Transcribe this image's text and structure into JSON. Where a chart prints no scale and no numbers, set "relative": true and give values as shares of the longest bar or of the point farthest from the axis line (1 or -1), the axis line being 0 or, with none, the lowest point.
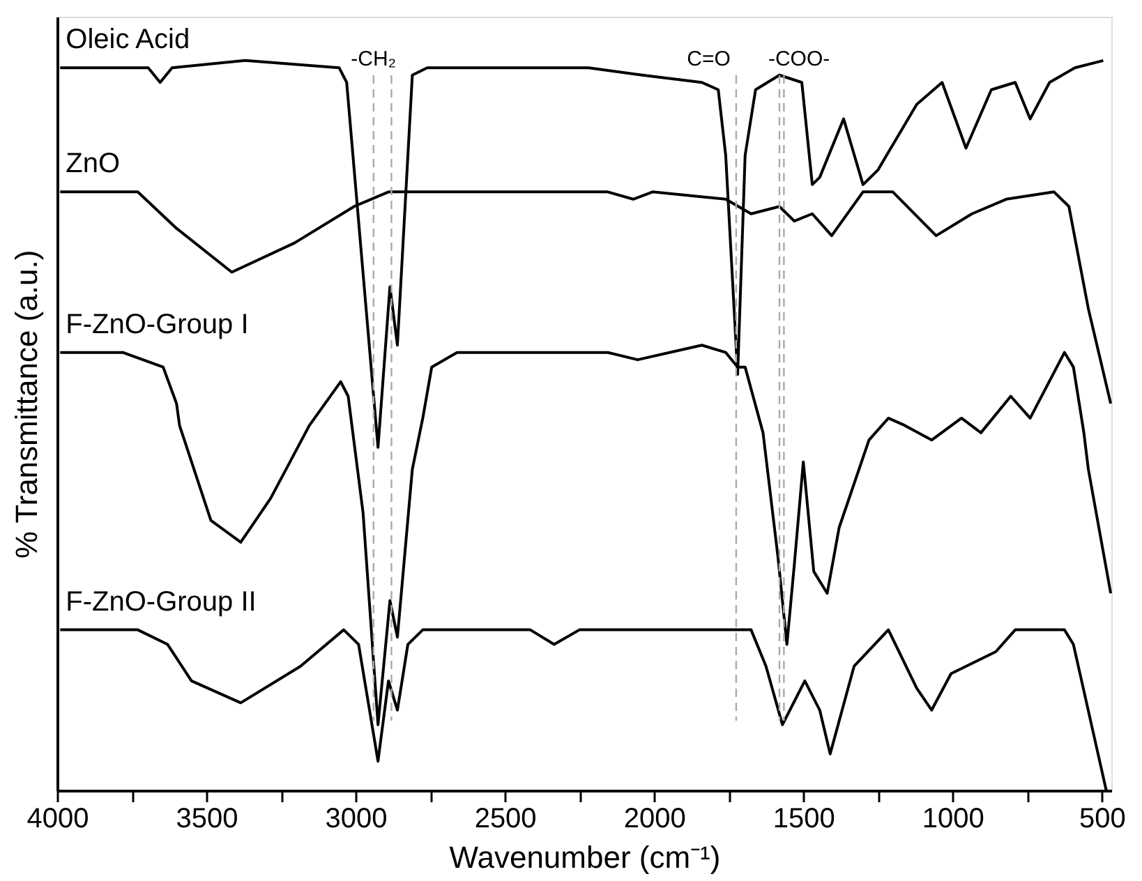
{
  "chart_data": {
    "type": "line",
    "relative": true,
    "xlabel": "Wavenumber (cm⁻¹)",
    "ylabel": "% Transmittance (a.u.)",
    "xlim": [
      4000,
      468
    ],
    "xticks": [
      4000,
      {
        "value": 3750,
        "label": null
      },
      3500,
      {
        "value": 3250,
        "label": null
      },
      3000,
      {
        "value": 2750,
        "label": null
      },
      2500,
      {
        "value": 2250,
        "label": null
      },
      2000,
      {
        "value": 1750,
        "label": null
      },
      1500,
      {
        "value": 1250,
        "label": null
      },
      1000,
      {
        "value": 750,
        "label": null
      },
      500
    ],
    "grid": false,
    "legend": false,
    "marker": "none",
    "line_style": "solid",
    "ref_lines": [
      {
        "axis": "x",
        "value": 2940,
        "label": "-CH₂",
        "color": "#aaaaaa",
        "line_style": "dashed"
      },
      {
        "axis": "x",
        "value": 2880,
        "label": null,
        "color": "#aaaaaa",
        "line_style": "dashed"
      },
      {
        "axis": "x",
        "value": 1725,
        "label": "C=O",
        "color": "#aaaaaa",
        "line_style": "dashed"
      },
      {
        "axis": "x",
        "value": 1580,
        "label": "-COO-",
        "color": "#aaaaaa",
        "line_style": "dashed"
      },
      {
        "axis": "x",
        "value": 1565,
        "label": null,
        "color": "#aaaaaa",
        "line_style": "dashed"
      }
    ],
    "series": [
      {
        "name": "Oleic Acid",
        "color": "#000000",
        "x": [
          3990,
          3695,
          3655,
          3615,
          3370,
          3055,
          3030,
          2925,
          2885,
          2860,
          2810,
          2760,
          2545,
          2220,
          2040,
          1840,
          1785,
          1760,
          1720,
          1695,
          1660,
          1580,
          1505,
          1470,
          1445,
          1365,
          1300,
          1250,
          1120,
          1035,
          955,
          870,
          790,
          740,
          675,
          590,
          495
        ],
        "values": [
          0.99,
          0.99,
          0.97,
          0.99,
          1.0,
          0.99,
          0.97,
          0.47,
          0.69,
          0.61,
          0.98,
          0.99,
          0.99,
          0.99,
          0.98,
          0.97,
          0.96,
          0.87,
          0.57,
          0.87,
          0.96,
          0.98,
          0.97,
          0.83,
          0.84,
          0.92,
          0.83,
          0.85,
          0.94,
          0.97,
          0.88,
          0.96,
          0.97,
          0.92,
          0.97,
          0.99,
          1.0
        ]
      },
      {
        "name": "ZnO",
        "color": "#000000",
        "x": [
          3990,
          3730,
          3600,
          3415,
          3205,
          3005,
          2890,
          2545,
          2220,
          2155,
          2070,
          2005,
          1760,
          1675,
          1580,
          1530,
          1470,
          1405,
          1300,
          1200,
          1055,
          935,
          820,
          660,
          610,
          545,
          470
        ],
        "values": [
          0.82,
          0.82,
          0.77,
          0.71,
          0.75,
          0.8,
          0.82,
          0.82,
          0.82,
          0.82,
          0.81,
          0.82,
          0.81,
          0.79,
          0.8,
          0.78,
          0.79,
          0.76,
          0.82,
          0.82,
          0.76,
          0.79,
          0.81,
          0.82,
          0.8,
          0.66,
          0.53
        ]
      },
      {
        "name": "F-ZnO-Group I",
        "color": "#000000",
        "x": [
          3990,
          3780,
          3645,
          3600,
          3590,
          3485,
          3385,
          3285,
          3155,
          3050,
          3025,
          2975,
          2925,
          2885,
          2860,
          2810,
          2775,
          2745,
          2660,
          2220,
          2155,
          2055,
          1840,
          1760,
          1720,
          1695,
          1635,
          1585,
          1555,
          1530,
          1500,
          1465,
          1420,
          1380,
          1280,
          1215,
          1160,
          1070,
          970,
          905,
          805,
          740,
          625,
          595,
          560,
          545,
          470
        ],
        "values": [
          0.6,
          0.6,
          0.58,
          0.53,
          0.5,
          0.37,
          0.34,
          0.4,
          0.5,
          0.56,
          0.54,
          0.38,
          0.09,
          0.26,
          0.21,
          0.44,
          0.51,
          0.58,
          0.6,
          0.6,
          0.6,
          0.59,
          0.61,
          0.6,
          0.58,
          0.58,
          0.49,
          0.32,
          0.2,
          0.31,
          0.45,
          0.3,
          0.27,
          0.36,
          0.48,
          0.51,
          0.5,
          0.48,
          0.51,
          0.49,
          0.54,
          0.51,
          0.6,
          0.58,
          0.49,
          0.44,
          0.27
        ]
      },
      {
        "name": "F-ZnO-Group II",
        "color": "#000000",
        "x": [
          3990,
          3730,
          3630,
          3550,
          3385,
          3185,
          3040,
          2990,
          2925,
          2890,
          2860,
          2825,
          2775,
          2415,
          2335,
          2250,
          1925,
          1675,
          1625,
          1570,
          1495,
          1445,
          1410,
          1330,
          1215,
          1120,
          1070,
          1005,
          855,
          790,
          625,
          595,
          485
        ],
        "values": [
          0.22,
          0.22,
          0.2,
          0.15,
          0.12,
          0.17,
          0.22,
          0.2,
          0.04,
          0.15,
          0.11,
          0.2,
          0.22,
          0.22,
          0.2,
          0.22,
          0.22,
          0.22,
          0.17,
          0.09,
          0.15,
          0.11,
          0.05,
          0.17,
          0.22,
          0.14,
          0.11,
          0.16,
          0.19,
          0.22,
          0.22,
          0.2,
          0.0
        ]
      }
    ]
  }
}
